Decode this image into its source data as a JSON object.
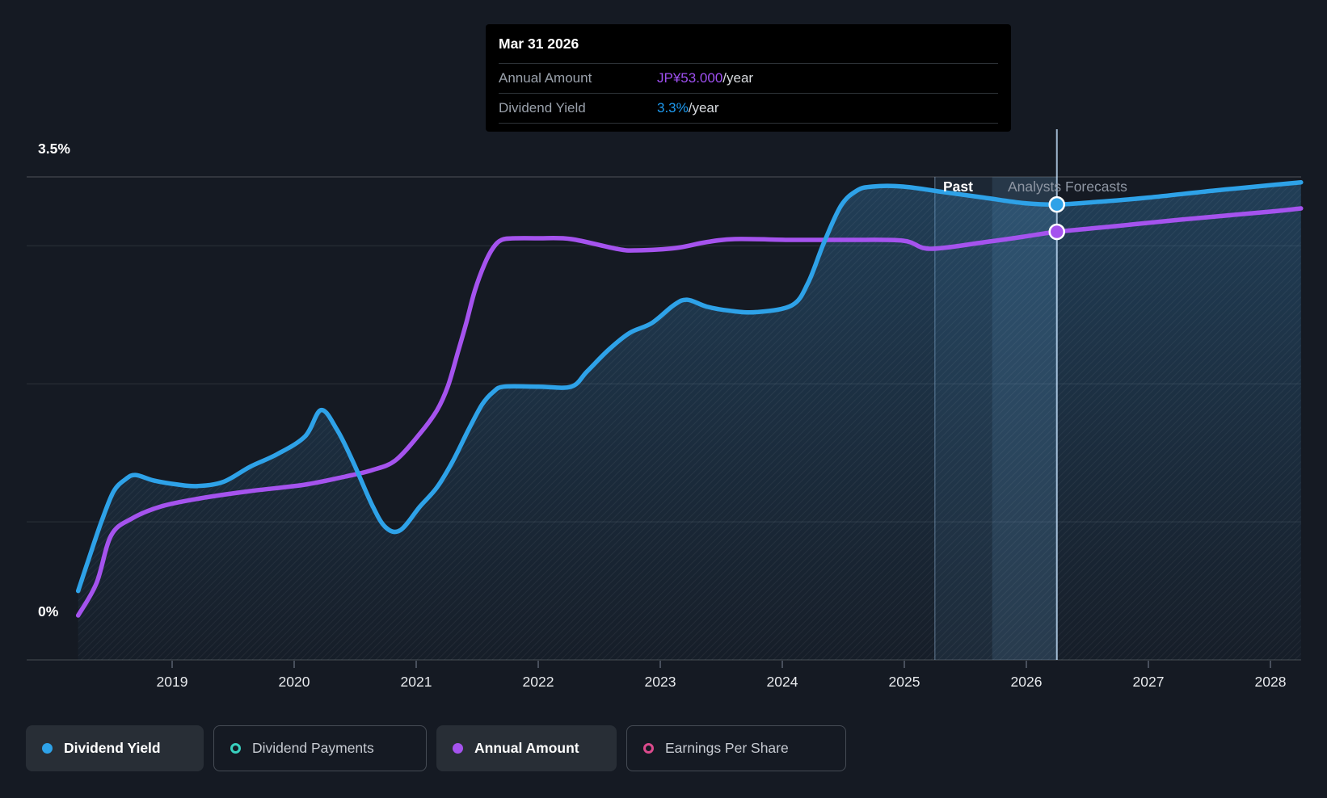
{
  "page": {
    "background": "#151a23"
  },
  "tooltip": {
    "date": "Mar 31 2026",
    "rows": [
      {
        "label": "Annual Amount",
        "value": "JP¥53.000",
        "suffix": "/year",
        "color": "#9f50f2"
      },
      {
        "label": "Dividend Yield",
        "value": "3.3%",
        "suffix": "/year",
        "color": "#1e9bf0"
      }
    ]
  },
  "annotations": {
    "past_label": "Past",
    "forecast_label": "Analysts Forecasts"
  },
  "legend": [
    {
      "label": "Dividend Yield",
      "marker": "dot",
      "color": "#2ea2e8",
      "active": true
    },
    {
      "label": "Dividend Payments",
      "marker": "ring",
      "color": "#38cfbe",
      "active": false
    },
    {
      "label": "Annual Amount",
      "marker": "dot",
      "color": "#a553ee",
      "active": true
    },
    {
      "label": "Earnings Per Share",
      "marker": "ring",
      "color": "#db4a8c",
      "active": false
    }
  ],
  "chart_data": {
    "type": "line",
    "x_ticks": [
      2019,
      2020,
      2021,
      2022,
      2023,
      2024,
      2025,
      2026,
      2027,
      2028
    ],
    "x_range": [
      2017.81,
      2028.25
    ],
    "y_axis": {
      "unit": "%",
      "min": 0,
      "max": 3.5,
      "top_label": "3.5%",
      "bottom_label": "0%",
      "gridlines": [
        3.5,
        3,
        2,
        1
      ]
    },
    "amount_axis": {
      "unit": "JP¥/year",
      "min": 0,
      "max_at_plot_top": 59.8
    },
    "past_until": 2025.72,
    "hover": {
      "date": "Mar 31 2026",
      "x": 2026.25,
      "period_start": 2025.25,
      "dividend_yield_pct": 3.3,
      "annual_amount_jpy": 53.0
    },
    "series": [
      {
        "name": "Dividend Yield",
        "unit": "%",
        "color": "#2ea2e8",
        "axis": "y_axis",
        "points": [
          [
            2018.23,
            0.5
          ],
          [
            2018.32,
            0.74
          ],
          [
            2018.42,
            1.0
          ],
          [
            2018.52,
            1.22
          ],
          [
            2018.62,
            1.31
          ],
          [
            2018.7,
            1.34
          ],
          [
            2018.85,
            1.3
          ],
          [
            2019.05,
            1.27
          ],
          [
            2019.21,
            1.26
          ],
          [
            2019.42,
            1.29
          ],
          [
            2019.64,
            1.4
          ],
          [
            2019.86,
            1.49
          ],
          [
            2020.09,
            1.62
          ],
          [
            2020.22,
            1.81
          ],
          [
            2020.35,
            1.67
          ],
          [
            2020.48,
            1.44
          ],
          [
            2020.64,
            1.12
          ],
          [
            2020.75,
            0.96
          ],
          [
            2020.87,
            0.94
          ],
          [
            2021.03,
            1.11
          ],
          [
            2021.17,
            1.25
          ],
          [
            2021.3,
            1.44
          ],
          [
            2021.43,
            1.67
          ],
          [
            2021.54,
            1.85
          ],
          [
            2021.63,
            1.94
          ],
          [
            2021.72,
            1.98
          ],
          [
            2022.0,
            1.98
          ],
          [
            2022.27,
            1.98
          ],
          [
            2022.4,
            2.09
          ],
          [
            2022.58,
            2.25
          ],
          [
            2022.75,
            2.37
          ],
          [
            2022.93,
            2.44
          ],
          [
            2023.11,
            2.57
          ],
          [
            2023.22,
            2.61
          ],
          [
            2023.38,
            2.56
          ],
          [
            2023.57,
            2.53
          ],
          [
            2023.79,
            2.52
          ],
          [
            2024.08,
            2.57
          ],
          [
            2024.21,
            2.73
          ],
          [
            2024.34,
            3.02
          ],
          [
            2024.48,
            3.29
          ],
          [
            2024.61,
            3.4
          ],
          [
            2024.74,
            3.43
          ],
          [
            2024.99,
            3.43
          ],
          [
            2025.32,
            3.39
          ],
          [
            2025.65,
            3.35
          ],
          [
            2025.98,
            3.31
          ],
          [
            2026.25,
            3.3
          ],
          [
            2026.6,
            3.32
          ],
          [
            2027.0,
            3.35
          ],
          [
            2027.53,
            3.4
          ],
          [
            2028.0,
            3.44
          ],
          [
            2028.25,
            3.46
          ]
        ]
      },
      {
        "name": "Annual Amount",
        "unit": "JP¥",
        "color": "#a553ee",
        "axis": "amount_axis",
        "points": [
          [
            2018.23,
            5.5
          ],
          [
            2018.38,
            9.5
          ],
          [
            2018.5,
            15.4
          ],
          [
            2018.67,
            17.5
          ],
          [
            2018.91,
            19.0
          ],
          [
            2019.23,
            20.0
          ],
          [
            2019.64,
            20.9
          ],
          [
            2020.09,
            21.7
          ],
          [
            2020.42,
            22.7
          ],
          [
            2020.64,
            23.5
          ],
          [
            2020.83,
            24.7
          ],
          [
            2021.03,
            28.0
          ],
          [
            2021.17,
            30.9
          ],
          [
            2021.26,
            33.9
          ],
          [
            2021.34,
            38.0
          ],
          [
            2021.41,
            41.7
          ],
          [
            2021.48,
            45.7
          ],
          [
            2021.56,
            49.0
          ],
          [
            2021.63,
            51.0
          ],
          [
            2021.7,
            52.0
          ],
          [
            2021.81,
            52.2
          ],
          [
            2022.0,
            52.2
          ],
          [
            2022.27,
            52.1
          ],
          [
            2022.64,
            50.9
          ],
          [
            2022.8,
            50.7
          ],
          [
            2023.13,
            51.0
          ],
          [
            2023.37,
            51.7
          ],
          [
            2023.61,
            52.1
          ],
          [
            2024.08,
            52.0
          ],
          [
            2024.54,
            52.0
          ],
          [
            2024.99,
            51.9
          ],
          [
            2025.21,
            50.9
          ],
          [
            2025.65,
            51.7
          ],
          [
            2025.98,
            52.4
          ],
          [
            2026.25,
            53.0
          ],
          [
            2026.73,
            53.7
          ],
          [
            2027.26,
            54.5
          ],
          [
            2028.0,
            55.5
          ],
          [
            2028.25,
            55.9
          ]
        ]
      }
    ],
    "colors": {
      "grid_strong": "rgba(255,255,255,0.17)",
      "grid_weak": "rgba(255,255,255,0.07)",
      "axis_line": "rgba(255,255,255,0.15)",
      "fill_top": "rgba(62,148,210,0.30)",
      "fill_bottom": "rgba(62,148,210,0.03)",
      "band": "rgba(96,156,208,0.10)",
      "band_forecast": "rgba(120,180,230,0.12)",
      "period_line": "rgba(165,200,235,0.35)",
      "cursor_line": "rgba(200,228,255,0.78)",
      "tick": "#5a6170",
      "tick_label": "#e8eaed"
    }
  }
}
